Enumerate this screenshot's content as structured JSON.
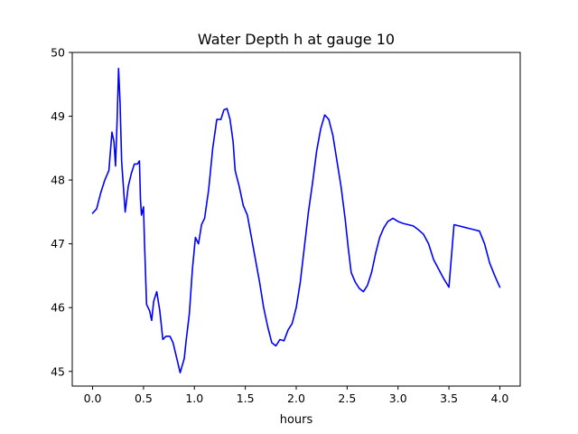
{
  "chart_data": {
    "type": "line",
    "title": "Water Depth h at gauge 10",
    "xlabel": "hours",
    "ylabel": "",
    "xlim": [
      -0.2,
      4.2
    ],
    "ylim": [
      44.77,
      50.0
    ],
    "grid": false,
    "xticks": [
      0.0,
      0.5,
      1.0,
      1.5,
      2.0,
      2.5,
      3.0,
      3.5,
      4.0
    ],
    "xtick_labels": [
      "0.0",
      "0.5",
      "1.0",
      "1.5",
      "2.0",
      "2.5",
      "3.0",
      "3.5",
      "4.0"
    ],
    "yticks": [
      45,
      46,
      47,
      48,
      49,
      50
    ],
    "ytick_labels": [
      "45",
      "46",
      "47",
      "48",
      "49",
      "50"
    ],
    "series": [
      {
        "color": "#0000ff",
        "x": [
          0.0,
          0.04,
          0.08,
          0.12,
          0.16,
          0.19,
          0.21,
          0.225,
          0.24,
          0.255,
          0.27,
          0.285,
          0.3,
          0.32,
          0.35,
          0.38,
          0.41,
          0.44,
          0.46,
          0.47,
          0.48,
          0.5,
          0.51,
          0.53,
          0.56,
          0.58,
          0.6,
          0.63,
          0.66,
          0.69,
          0.72,
          0.76,
          0.79,
          0.82,
          0.86,
          0.9,
          0.92,
          0.95,
          0.98,
          1.01,
          1.04,
          1.07,
          1.1,
          1.14,
          1.18,
          1.22,
          1.26,
          1.29,
          1.32,
          1.35,
          1.38,
          1.4,
          1.44,
          1.48,
          1.52,
          1.56,
          1.6,
          1.64,
          1.68,
          1.72,
          1.76,
          1.8,
          1.84,
          1.88,
          1.92,
          1.96,
          2.0,
          2.04,
          2.08,
          2.12,
          2.16,
          2.2,
          2.24,
          2.28,
          2.32,
          2.36,
          2.4,
          2.44,
          2.48,
          2.51,
          2.54,
          2.58,
          2.62,
          2.66,
          2.7,
          2.74,
          2.78,
          2.82,
          2.86,
          2.9,
          2.95,
          3.0,
          3.05,
          3.1,
          3.15,
          3.2,
          3.25,
          3.3,
          3.35,
          3.4,
          3.45,
          3.5,
          3.55,
          3.6,
          3.65,
          3.7,
          3.75,
          3.8,
          3.85,
          3.9,
          3.95,
          4.0
        ],
        "y": [
          47.48,
          47.55,
          47.8,
          48.0,
          48.15,
          48.75,
          48.6,
          48.22,
          48.9,
          49.75,
          49.2,
          48.3,
          47.95,
          47.5,
          47.9,
          48.1,
          48.25,
          48.25,
          48.3,
          47.7,
          47.45,
          47.58,
          47.0,
          46.05,
          45.95,
          45.8,
          46.1,
          46.25,
          45.95,
          45.5,
          45.55,
          45.55,
          45.45,
          45.25,
          44.98,
          45.2,
          45.5,
          45.9,
          46.6,
          47.1,
          47.0,
          47.3,
          47.4,
          47.85,
          48.5,
          48.95,
          48.95,
          49.1,
          49.12,
          48.95,
          48.6,
          48.15,
          47.9,
          47.6,
          47.45,
          47.1,
          46.75,
          46.4,
          46.0,
          45.7,
          45.45,
          45.4,
          45.5,
          45.48,
          45.65,
          45.75,
          46.0,
          46.4,
          46.95,
          47.5,
          47.95,
          48.45,
          48.8,
          49.02,
          48.95,
          48.7,
          48.3,
          47.9,
          47.4,
          46.95,
          46.55,
          46.4,
          46.3,
          46.25,
          46.35,
          46.55,
          46.85,
          47.1,
          47.25,
          47.35,
          47.4,
          47.35,
          47.32,
          47.3,
          47.28,
          47.22,
          47.15,
          47.0,
          46.75,
          46.6,
          46.45,
          46.32,
          47.3,
          47.28,
          47.26,
          47.24,
          47.22,
          47.2,
          47.0,
          46.7,
          46.5,
          46.32
        ]
      }
    ]
  }
}
